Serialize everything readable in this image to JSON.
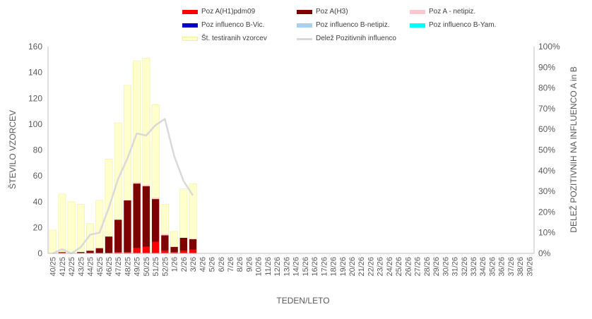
{
  "colors": {
    "h1pdm09": "#ff0000",
    "h3": "#7f0000",
    "a_untyped": "#ffc8d0",
    "b_vic": "#0000cc",
    "b_untyped": "#a8d0f0",
    "b_yam": "#00ffff",
    "tested": "#ffffcc",
    "tested_border": "#f0f0a0",
    "positive_share": "#d9d9d9",
    "axis": "#bfbfbf",
    "text": "#595959"
  },
  "legend": [
    {
      "key": "h1pdm09",
      "label": "Poz A(H1)pdm09",
      "kind": "bar"
    },
    {
      "key": "h3",
      "label": "Poz A(H3)",
      "kind": "bar"
    },
    {
      "key": "a_untyped",
      "label": "Poz A - netipiz.",
      "kind": "bar"
    },
    {
      "key": "b_vic",
      "label": "Poz  influenco B-Vic.",
      "kind": "bar"
    },
    {
      "key": "b_untyped",
      "label": "Poz  influenco B-netipiz.",
      "kind": "bar"
    },
    {
      "key": "b_yam",
      "label": "Poz  influenco B-Yam.",
      "kind": "bar"
    },
    {
      "key": "tested",
      "label": "Št. testiranih vzorcev",
      "kind": "bar"
    },
    {
      "key": "positive_share",
      "label": "Delež Pozitivnih  influenco",
      "kind": "line"
    }
  ],
  "chart_data": {
    "type": "bar",
    "title": "",
    "xlabel": "TEDEN/LETO",
    "ylabel": "ŠTEVILO VZORCEV",
    "y2label": "DELEŽ POZITIVNIH  NA INFLUENCO  A in B",
    "ylim": [
      0,
      160
    ],
    "yticks": [
      0,
      20,
      40,
      60,
      80,
      100,
      120,
      140,
      160
    ],
    "y2lim": [
      0,
      100
    ],
    "y2ticks": [
      "0%",
      "10%",
      "20%",
      "30%",
      "40%",
      "50%",
      "60%",
      "70%",
      "80%",
      "90%",
      "100%"
    ],
    "grid": false,
    "legend_position": "top",
    "categories": [
      "40/25",
      "41/25",
      "42/25",
      "43/25",
      "44/25",
      "45/25",
      "46/25",
      "47/25",
      "48/25",
      "49/25",
      "50/25",
      "51/25",
      "52/25",
      "1/26",
      "2/26",
      "3/26",
      "4/26",
      "5/26",
      "6/26",
      "7/26",
      "8/26",
      "9/26",
      "10/26",
      "11/26",
      "12/26",
      "13/26",
      "14/26",
      "15/26",
      "16/26",
      "17/26",
      "18/26",
      "19/26",
      "20/26",
      "21/26",
      "22/26",
      "23/26",
      "24/26",
      "25/26",
      "26/26",
      "27/26",
      "28/26",
      "29/26",
      "30/26",
      "31/26",
      "32/26",
      "33/26",
      "34/26",
      "35/26",
      "36/26",
      "37/26",
      "38/26",
      "39/26"
    ],
    "stacked_series": [
      {
        "key": "h1pdm09",
        "name": "Poz A(H1)pdm09",
        "values": [
          0,
          1,
          0,
          0,
          0,
          0,
          0,
          1,
          1,
          4,
          5,
          9,
          2,
          1,
          2,
          3,
          null,
          null,
          null,
          null,
          null,
          null,
          null,
          null,
          null,
          null,
          null,
          null,
          null,
          null,
          null,
          null,
          null,
          null,
          null,
          null,
          null,
          null,
          null,
          null,
          null,
          null,
          null,
          null,
          null,
          null,
          null,
          null,
          null,
          null,
          null,
          null
        ]
      },
      {
        "key": "h3",
        "name": "Poz A(H3)",
        "values": [
          0,
          0,
          0,
          1,
          2,
          4,
          13,
          25,
          40,
          50,
          47,
          33,
          12,
          4,
          10,
          8,
          null,
          null,
          null,
          null,
          null,
          null,
          null,
          null,
          null,
          null,
          null,
          null,
          null,
          null,
          null,
          null,
          null,
          null,
          null,
          null,
          null,
          null,
          null,
          null,
          null,
          null,
          null,
          null,
          null,
          null,
          null,
          null,
          null,
          null,
          null,
          null
        ]
      },
      {
        "key": "a_untyped",
        "name": "Poz A - netipiz.",
        "values": [
          0,
          0,
          0,
          0,
          0,
          0,
          0,
          0,
          0,
          1,
          1,
          1,
          1,
          0,
          0,
          0,
          null,
          null,
          null,
          null,
          null,
          null,
          null,
          null,
          null,
          null,
          null,
          null,
          null,
          null,
          null,
          null,
          null,
          null,
          null,
          null,
          null,
          null,
          null,
          null,
          null,
          null,
          null,
          null,
          null,
          null,
          null,
          null,
          null,
          null,
          null,
          null
        ]
      },
      {
        "key": "b_vic",
        "name": "Poz  influenco B-Vic.",
        "values": [
          0,
          0,
          0,
          0,
          0,
          0,
          0,
          0,
          0,
          0,
          0,
          0,
          0,
          0,
          0,
          0,
          null,
          null,
          null,
          null,
          null,
          null,
          null,
          null,
          null,
          null,
          null,
          null,
          null,
          null,
          null,
          null,
          null,
          null,
          null,
          null,
          null,
          null,
          null,
          null,
          null,
          null,
          null,
          null,
          null,
          null,
          null,
          null,
          null,
          null,
          null,
          null
        ]
      },
      {
        "key": "b_untyped",
        "name": "Poz  influenco B-netipiz.",
        "values": [
          0,
          0,
          0,
          0,
          0,
          0,
          0,
          0,
          0,
          0,
          0,
          0,
          0,
          0,
          0,
          0,
          null,
          null,
          null,
          null,
          null,
          null,
          null,
          null,
          null,
          null,
          null,
          null,
          null,
          null,
          null,
          null,
          null,
          null,
          null,
          null,
          null,
          null,
          null,
          null,
          null,
          null,
          null,
          null,
          null,
          null,
          null,
          null,
          null,
          null,
          null,
          null
        ]
      },
      {
        "key": "b_yam",
        "name": "Poz  influenco B-Yam.",
        "values": [
          0,
          0,
          0,
          0,
          0,
          0,
          0,
          0,
          0,
          0,
          0,
          0,
          0,
          0,
          0,
          0,
          null,
          null,
          null,
          null,
          null,
          null,
          null,
          null,
          null,
          null,
          null,
          null,
          null,
          null,
          null,
          null,
          null,
          null,
          null,
          null,
          null,
          null,
          null,
          null,
          null,
          null,
          null,
          null,
          null,
          null,
          null,
          null,
          null,
          null,
          null,
          null
        ]
      }
    ],
    "tested": {
      "key": "tested",
      "name": "Št. testiranih vzorcev",
      "values": [
        18,
        46,
        40,
        38,
        23,
        41,
        73,
        101,
        130,
        149,
        151,
        115,
        38,
        17,
        50,
        54,
        null,
        null,
        null,
        null,
        null,
        null,
        null,
        null,
        null,
        null,
        null,
        null,
        null,
        null,
        null,
        null,
        null,
        null,
        null,
        null,
        null,
        null,
        null,
        null,
        null,
        null,
        null,
        null,
        null,
        null,
        null,
        null,
        null,
        null,
        null,
        null
      ]
    },
    "positive_share": {
      "key": "positive_share",
      "name": "Delež Pozitivnih  influenco",
      "axis": "secondary",
      "unit": "%",
      "values": [
        0,
        2,
        0,
        3,
        9,
        10,
        22,
        36,
        46,
        58,
        57,
        62,
        65,
        47,
        35,
        28,
        null,
        null,
        null,
        null,
        null,
        null,
        null,
        null,
        null,
        null,
        null,
        null,
        null,
        null,
        null,
        null,
        null,
        null,
        null,
        null,
        null,
        null,
        null,
        null,
        null,
        null,
        null,
        null,
        null,
        null,
        null,
        null,
        null,
        null,
        null,
        null
      ]
    }
  }
}
